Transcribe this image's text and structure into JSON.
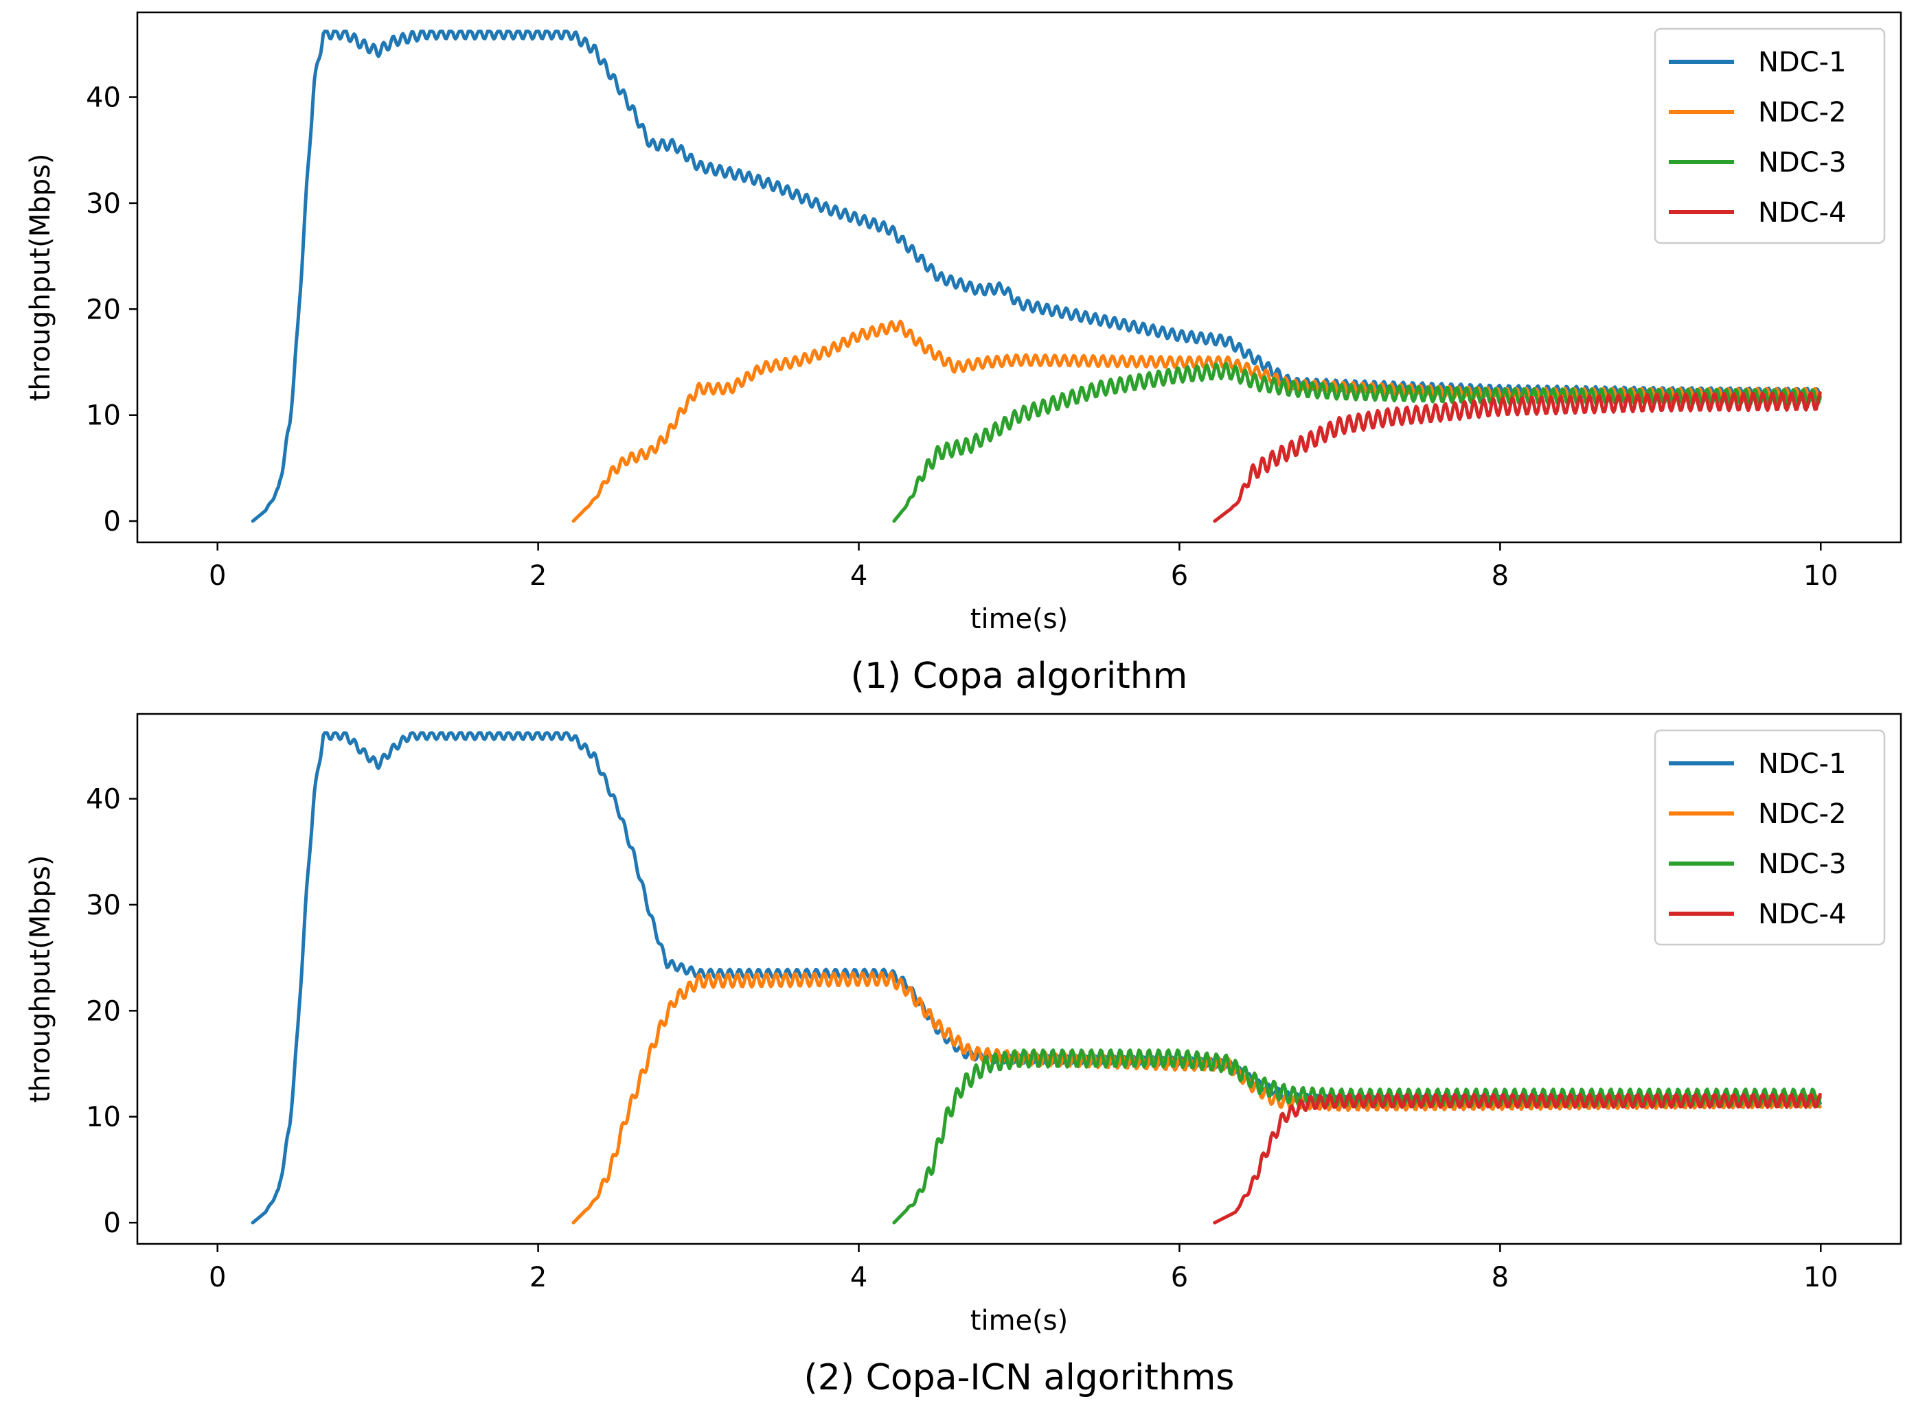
{
  "chart_data": [
    {
      "type": "line",
      "caption": "(1) Copa algorithm",
      "xlabel": "time(s)",
      "ylabel": "throughput(Mbps)",
      "xlim": [
        -0.5,
        10.5
      ],
      "ylim": [
        -2,
        48
      ],
      "xticks": [
        "0",
        "2",
        "4",
        "6",
        "8",
        "10"
      ],
      "yticks": [
        "0",
        "10",
        "20",
        "30",
        "40"
      ],
      "legend_position": "top-right",
      "series": [
        {
          "name": "NDC-1",
          "color": "#1f77b4",
          "wobble": 0.5,
          "points": [
            [
              0.22,
              0
            ],
            [
              0.3,
              1
            ],
            [
              0.38,
              3
            ],
            [
              0.45,
              9
            ],
            [
              0.5,
              18
            ],
            [
              0.55,
              30
            ],
            [
              0.6,
              41
            ],
            [
              0.66,
              46
            ],
            [
              0.8,
              46
            ],
            [
              0.9,
              45
            ],
            [
              1.0,
              44.3
            ],
            [
              1.1,
              45.3
            ],
            [
              1.3,
              46
            ],
            [
              2.2,
              46
            ],
            [
              2.35,
              44.5
            ],
            [
              2.5,
              41
            ],
            [
              2.6,
              38.5
            ],
            [
              2.7,
              35.5
            ],
            [
              2.85,
              35.5
            ],
            [
              3.0,
              33.5
            ],
            [
              3.3,
              32.5
            ],
            [
              3.5,
              31.5
            ],
            [
              3.8,
              29.5
            ],
            [
              4.0,
              28.5
            ],
            [
              4.2,
              27.5
            ],
            [
              4.3,
              26
            ],
            [
              4.5,
              23
            ],
            [
              4.75,
              21.8
            ],
            [
              4.9,
              22
            ],
            [
              5.0,
              20.5
            ],
            [
              5.5,
              19
            ],
            [
              6.0,
              17.5
            ],
            [
              6.3,
              17
            ],
            [
              6.5,
              15
            ],
            [
              6.7,
              13
            ],
            [
              7.0,
              12.8
            ],
            [
              8.0,
              12.3
            ],
            [
              9.0,
              12.1
            ],
            [
              10.0,
              12
            ]
          ]
        },
        {
          "name": "NDC-2",
          "color": "#ff7f0e",
          "wobble": 0.5,
          "points": [
            [
              2.22,
              0
            ],
            [
              2.35,
              2
            ],
            [
              2.45,
              4.5
            ],
            [
              2.55,
              5.8
            ],
            [
              2.7,
              6.5
            ],
            [
              2.8,
              8
            ],
            [
              2.9,
              10.5
            ],
            [
              3.0,
              12.5
            ],
            [
              3.2,
              12.5
            ],
            [
              3.4,
              14.5
            ],
            [
              3.6,
              15
            ],
            [
              3.8,
              16
            ],
            [
              4.0,
              17.5
            ],
            [
              4.25,
              18.5
            ],
            [
              4.4,
              16.5
            ],
            [
              4.6,
              14.5
            ],
            [
              4.8,
              15
            ],
            [
              5.0,
              15.2
            ],
            [
              6.0,
              15
            ],
            [
              6.3,
              15
            ],
            [
              6.5,
              14
            ],
            [
              6.7,
              12.8
            ],
            [
              8.0,
              12
            ],
            [
              10.0,
              12
            ]
          ]
        },
        {
          "name": "NDC-3",
          "color": "#2ca02c",
          "wobble": 0.7,
          "points": [
            [
              4.22,
              0
            ],
            [
              4.3,
              1.5
            ],
            [
              4.4,
              4.5
            ],
            [
              4.5,
              6.5
            ],
            [
              4.7,
              7.2
            ],
            [
              4.9,
              9
            ],
            [
              5.0,
              10
            ],
            [
              5.3,
              11.5
            ],
            [
              5.5,
              12.5
            ],
            [
              6.0,
              13.8
            ],
            [
              6.3,
              14.2
            ],
            [
              6.5,
              13
            ],
            [
              6.7,
              12.5
            ],
            [
              7.0,
              12.2
            ],
            [
              8.0,
              11.8
            ],
            [
              10.0,
              11.7
            ]
          ]
        },
        {
          "name": "NDC-4",
          "color": "#d62728",
          "wobble": 0.8,
          "points": [
            [
              6.22,
              0
            ],
            [
              6.35,
              1.5
            ],
            [
              6.45,
              4.5
            ],
            [
              6.6,
              6
            ],
            [
              6.8,
              7.5
            ],
            [
              7.0,
              9
            ],
            [
              7.3,
              9.8
            ],
            [
              7.6,
              10.2
            ],
            [
              8.0,
              10.8
            ],
            [
              9.0,
              11.2
            ],
            [
              10.0,
              11.3
            ]
          ]
        }
      ]
    },
    {
      "type": "line",
      "caption": "(2) Copa-ICN algorithms",
      "xlabel": "time(s)",
      "ylabel": "throughput(Mbps)",
      "xlim": [
        -0.5,
        10.5
      ],
      "ylim": [
        -2,
        48
      ],
      "xticks": [
        "0",
        "2",
        "4",
        "6",
        "8",
        "10"
      ],
      "yticks": [
        "0",
        "10",
        "20",
        "30",
        "40"
      ],
      "legend_position": "top-right",
      "series": [
        {
          "name": "NDC-1",
          "color": "#1f77b4",
          "wobble": 0.4,
          "points": [
            [
              0.22,
              0
            ],
            [
              0.3,
              1
            ],
            [
              0.38,
              3
            ],
            [
              0.45,
              9
            ],
            [
              0.5,
              18
            ],
            [
              0.55,
              30
            ],
            [
              0.6,
              40
            ],
            [
              0.66,
              46
            ],
            [
              0.8,
              46
            ],
            [
              0.9,
              44.5
            ],
            [
              1.0,
              43.2
            ],
            [
              1.1,
              44.8
            ],
            [
              1.2,
              46
            ],
            [
              2.2,
              46
            ],
            [
              2.35,
              44
            ],
            [
              2.5,
              39
            ],
            [
              2.6,
              34.5
            ],
            [
              2.7,
              29
            ],
            [
              2.8,
              24.5
            ],
            [
              3.0,
              23.5
            ],
            [
              4.2,
              23.5
            ],
            [
              4.3,
              22.5
            ],
            [
              4.5,
              18
            ],
            [
              4.65,
              16
            ],
            [
              4.8,
              15.5
            ],
            [
              6.0,
              15.2
            ],
            [
              6.3,
              15
            ],
            [
              6.5,
              13
            ],
            [
              6.7,
              11.8
            ],
            [
              7.0,
              11.5
            ],
            [
              10.0,
              11.5
            ]
          ]
        },
        {
          "name": "NDC-2",
          "color": "#ff7f0e",
          "wobble": 0.6,
          "points": [
            [
              2.22,
              0
            ],
            [
              2.35,
              2
            ],
            [
              2.45,
              5
            ],
            [
              2.55,
              10
            ],
            [
              2.65,
              14
            ],
            [
              2.75,
              18
            ],
            [
              2.85,
              21
            ],
            [
              3.0,
              22.8
            ],
            [
              4.2,
              23
            ],
            [
              4.3,
              22
            ],
            [
              4.5,
              18.5
            ],
            [
              4.7,
              16
            ],
            [
              5.0,
              15.5
            ],
            [
              6.0,
              15
            ],
            [
              6.3,
              15
            ],
            [
              6.45,
              13
            ],
            [
              6.6,
              11.5
            ],
            [
              7.0,
              11.2
            ],
            [
              10.0,
              11.5
            ]
          ]
        },
        {
          "name": "NDC-3",
          "color": "#2ca02c",
          "wobble": 0.8,
          "points": [
            [
              4.22,
              0
            ],
            [
              4.35,
              2
            ],
            [
              4.45,
              5
            ],
            [
              4.55,
              10
            ],
            [
              4.65,
              13
            ],
            [
              4.8,
              15
            ],
            [
              5.0,
              15.5
            ],
            [
              6.0,
              15.5
            ],
            [
              6.3,
              15
            ],
            [
              6.5,
              13
            ],
            [
              6.7,
              12
            ],
            [
              7.0,
              11.8
            ],
            [
              10.0,
              11.8
            ]
          ]
        },
        {
          "name": "NDC-4",
          "color": "#d62728",
          "wobble": 0.6,
          "points": [
            [
              6.22,
              0
            ],
            [
              6.35,
              1
            ],
            [
              6.45,
              3.5
            ],
            [
              6.55,
              7
            ],
            [
              6.65,
              10
            ],
            [
              6.8,
              11.3
            ],
            [
              7.0,
              11.5
            ],
            [
              10.0,
              11.5
            ]
          ]
        }
      ]
    }
  ]
}
